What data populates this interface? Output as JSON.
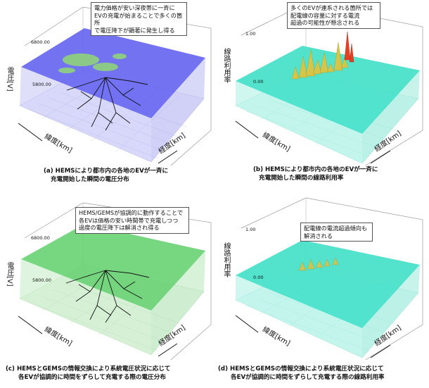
{
  "panels": [
    {
      "key": "a",
      "axes": {
        "z": "電圧[V]",
        "x": "緯度[km]",
        "y": "経度[km]"
      },
      "ticks": [
        "6800.00",
        "5800.00"
      ],
      "callout": [
        "電力価格が安い深夜帯に一斉に",
        "EVの充電が始まることで多くの箇所",
        "で電圧降下が顕著に発生し得る"
      ],
      "caption": [
        "(a)  HEMSにより都市内の各地のEVが一斉に",
        "充電開始した瞬間の電圧分布"
      ],
      "plane_color": "#5a5af0"
    },
    {
      "key": "b",
      "axes": {
        "z": "線路利用率",
        "x": "緯度[km]",
        "y": "経度[km]"
      },
      "ticks": [
        "1.00",
        "0.00"
      ],
      "callout": [
        "多くのEVが連系される箇所では",
        "配電線の容量に対する電流",
        "超過の可能性が懸念される"
      ],
      "caption": [
        "(b) HEMSにより都市内の各地のEVが一斉に",
        "充電開始した瞬間の線路利用率"
      ],
      "plane_color": "#40e0c8"
    },
    {
      "key": "c",
      "axes": {
        "z": "電圧[V]",
        "x": "緯度[km]",
        "y": "経度[km]"
      },
      "ticks": [
        "6800.00",
        "5800.00"
      ],
      "callout": [
        "HEMS/GEMSが協調的に動作することで",
        "各EVは価格の安い時間帯で充電しつつ",
        "過度の電圧降下は解消され得る"
      ],
      "caption": [
        "(c) HEMSとGEMSの情報交換により系統電圧状況に応じて",
        "各EVが協調的に時間をずらして充電する際の電圧分布"
      ],
      "plane_color": "#5fcf6a"
    },
    {
      "key": "d",
      "axes": {
        "z": "線路利用率",
        "x": "緯度[km]",
        "y": "経度[km]"
      },
      "ticks": [
        "1.00",
        "0.00"
      ],
      "callout": [
        "配電線の電流超過傾向も",
        "解消される"
      ],
      "caption": [
        "(d) HEMSとGEMSの情報交換により系統電圧状況に応じて",
        "各EVが協調的に時間をずらして充電する際の線路利用率"
      ],
      "plane_color": "#40e0c8"
    }
  ]
}
